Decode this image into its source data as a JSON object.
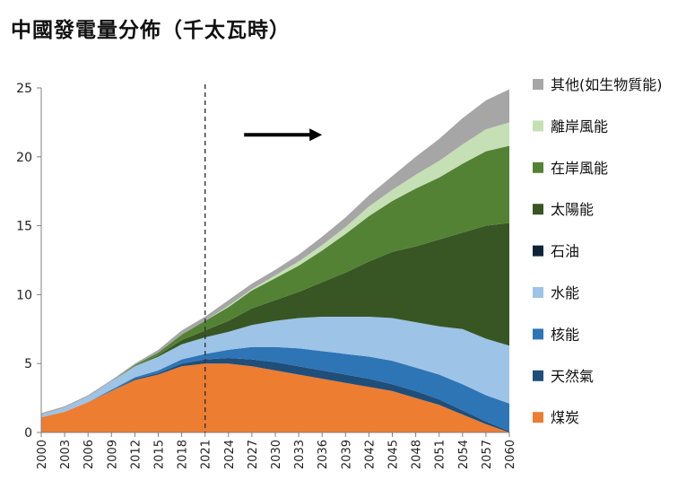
{
  "chart_data": {
    "type": "area",
    "stacked": true,
    "title": "中國發電量分佈（千太瓦時）",
    "xlabel": "",
    "ylabel": "",
    "xlim": [
      2000,
      2060
    ],
    "ylim": [
      0,
      25
    ],
    "y_ticks": [
      0,
      5,
      10,
      15,
      20,
      25
    ],
    "x_ticks": [
      2000,
      2003,
      2006,
      2009,
      2012,
      2015,
      2018,
      2021,
      2024,
      2027,
      2030,
      2033,
      2036,
      2039,
      2042,
      2045,
      2048,
      2051,
      2054,
      2057,
      2060
    ],
    "grid": false,
    "legend_position": "right",
    "annotations": {
      "vertical_dashed_line_x": 2021,
      "arrow": {
        "from_x": 2026,
        "to_x": 2036,
        "y": 21.6,
        "direction": "right"
      }
    },
    "x": [
      2000,
      2003,
      2006,
      2009,
      2012,
      2015,
      2018,
      2021,
      2024,
      2027,
      2030,
      2033,
      2036,
      2039,
      2042,
      2045,
      2048,
      2051,
      2054,
      2057,
      2060
    ],
    "series": [
      {
        "name": "煤炭",
        "color": "#ED7D31",
        "values": [
          1.1,
          1.5,
          2.2,
          3.0,
          3.8,
          4.2,
          4.8,
          5.0,
          5.0,
          4.8,
          4.5,
          4.2,
          3.9,
          3.6,
          3.3,
          3.0,
          2.5,
          2.0,
          1.3,
          0.6,
          0.0
        ]
      },
      {
        "name": "天然氣",
        "color": "#1F4E79",
        "values": [
          0.0,
          0.0,
          0.0,
          0.0,
          0.1,
          0.1,
          0.2,
          0.3,
          0.4,
          0.5,
          0.6,
          0.6,
          0.6,
          0.6,
          0.6,
          0.5,
          0.5,
          0.4,
          0.3,
          0.2,
          0.1
        ]
      },
      {
        "name": "核能",
        "color": "#2E75B6",
        "values": [
          0.0,
          0.0,
          0.0,
          0.1,
          0.1,
          0.2,
          0.3,
          0.4,
          0.6,
          0.9,
          1.1,
          1.3,
          1.4,
          1.5,
          1.6,
          1.7,
          1.7,
          1.8,
          1.9,
          1.9,
          2.0
        ]
      },
      {
        "name": "水能",
        "color": "#9DC3E6",
        "values": [
          0.2,
          0.3,
          0.4,
          0.6,
          0.8,
          1.0,
          1.1,
          1.2,
          1.3,
          1.6,
          1.9,
          2.2,
          2.5,
          2.7,
          2.9,
          3.1,
          3.3,
          3.5,
          4.0,
          4.1,
          4.2
        ]
      },
      {
        "name": "石油",
        "color": "#0D2436",
        "values": [
          0.0,
          0.0,
          0.0,
          0.0,
          0.0,
          0.0,
          0.0,
          0.0,
          0.0,
          0.0,
          0.0,
          0.0,
          0.0,
          0.0,
          0.0,
          0.0,
          0.0,
          0.0,
          0.0,
          0.0,
          0.0
        ]
      },
      {
        "name": "太陽能",
        "color": "#375623",
        "values": [
          0.0,
          0.0,
          0.0,
          0.0,
          0.0,
          0.1,
          0.3,
          0.5,
          0.8,
          1.2,
          1.5,
          1.9,
          2.5,
          3.2,
          4.0,
          4.8,
          5.5,
          6.3,
          7.0,
          8.2,
          8.9
        ]
      },
      {
        "name": "在岸風能",
        "color": "#548235",
        "values": [
          0.0,
          0.0,
          0.0,
          0.0,
          0.1,
          0.2,
          0.4,
          0.7,
          1.0,
          1.3,
          1.6,
          1.9,
          2.3,
          2.8,
          3.3,
          3.7,
          4.2,
          4.5,
          5.0,
          5.4,
          5.6
        ]
      },
      {
        "name": "離岸風能",
        "color": "#C5E0B4",
        "values": [
          0.0,
          0.0,
          0.0,
          0.0,
          0.0,
          0.0,
          0.0,
          0.0,
          0.1,
          0.1,
          0.2,
          0.3,
          0.4,
          0.5,
          0.7,
          0.8,
          1.0,
          1.2,
          1.4,
          1.6,
          1.7
        ]
      },
      {
        "name": "其他(如生物質能)",
        "color": "#A6A6A6",
        "values": [
          0.1,
          0.1,
          0.1,
          0.1,
          0.1,
          0.2,
          0.3,
          0.3,
          0.4,
          0.4,
          0.4,
          0.5,
          0.6,
          0.7,
          0.8,
          1.0,
          1.3,
          1.6,
          1.9,
          2.1,
          2.4
        ]
      }
    ]
  }
}
